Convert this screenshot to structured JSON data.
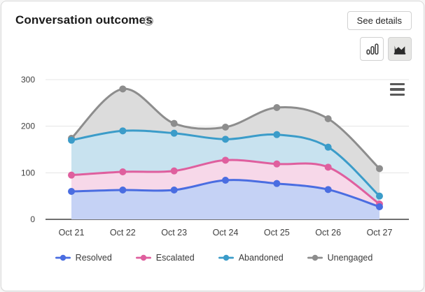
{
  "header": {
    "title": "Conversation outcomes",
    "info_icon": "info-circle",
    "see_details_label": "See details"
  },
  "toolbar": {
    "bar_chart_icon": "bar-chart",
    "area_chart_icon": "area-chart",
    "selected_type": "area",
    "menu_icon": "hamburger-menu"
  },
  "chart_data": {
    "type": "area",
    "title": "Conversation outcomes",
    "categories": [
      "Oct 21",
      "Oct 22",
      "Oct 23",
      "Oct 24",
      "Oct 25",
      "Oct 26",
      "Oct 27"
    ],
    "series": [
      {
        "name": "Resolved",
        "color": "#4a6de1",
        "fill": "#c5d2f5",
        "values": [
          60,
          63,
          63,
          84,
          77,
          64,
          27
        ]
      },
      {
        "name": "Escalated",
        "color": "#df5f9e",
        "fill": "#f7d8e9",
        "values": [
          95,
          102,
          104,
          127,
          119,
          112,
          33
        ]
      },
      {
        "name": "Abandoned",
        "color": "#3b9cc9",
        "fill": "#c8e2ef",
        "values": [
          170,
          190,
          185,
          172,
          182,
          155,
          50
        ]
      },
      {
        "name": "Unengaged",
        "color": "#8d8d8d",
        "fill": "#dcdcdc",
        "values": [
          174,
          280,
          206,
          198,
          240,
          216,
          109
        ]
      }
    ],
    "ylim": [
      0,
      300
    ],
    "yticks": [
      0,
      100,
      200,
      300
    ],
    "grid": true,
    "legend_position": "bottom",
    "axis_color": "#404040",
    "grid_color": "#e5e5e5",
    "tick_label_color": "#3f3f3f"
  }
}
